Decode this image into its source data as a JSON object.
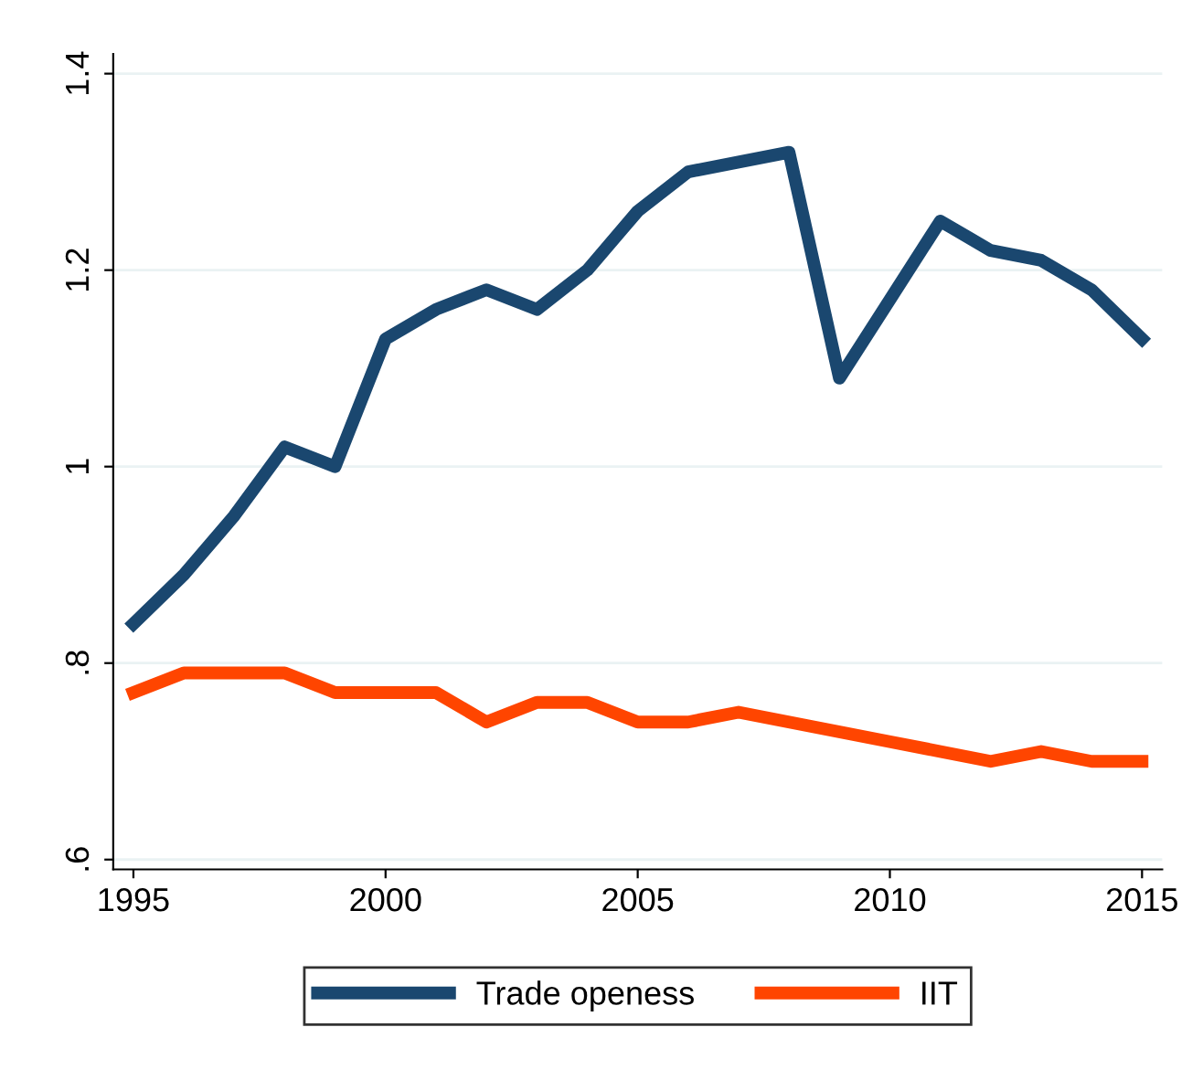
{
  "chart_data": {
    "type": "line",
    "x": [
      1995,
      1996,
      1997,
      1998,
      1999,
      2000,
      2001,
      2002,
      2003,
      2004,
      2005,
      2006,
      2007,
      2008,
      2009,
      2010,
      2011,
      2012,
      2013,
      2014,
      2015
    ],
    "series": [
      {
        "name": "Trade openess",
        "color": "#1a476f",
        "values": [
          0.84,
          0.89,
          0.95,
          1.02,
          1.0,
          1.13,
          1.16,
          1.18,
          1.16,
          1.2,
          1.26,
          1.3,
          1.31,
          1.32,
          1.09,
          1.17,
          1.25,
          1.22,
          1.21,
          1.18,
          1.13
        ]
      },
      {
        "name": "IIT",
        "color": "#ff4500",
        "values": [
          0.77,
          0.79,
          0.79,
          0.79,
          0.77,
          0.77,
          0.77,
          0.74,
          0.76,
          0.76,
          0.74,
          0.74,
          0.75,
          0.74,
          0.73,
          0.72,
          0.71,
          0.7,
          0.71,
          0.7,
          0.7
        ]
      }
    ],
    "xlim": [
      1994.6,
      2015.4
    ],
    "xticks": [
      1995,
      2000,
      2005,
      2010,
      2015
    ],
    "ylim": [
      0.59,
      1.42
    ],
    "yticks": [
      {
        "value": 0.6,
        "label": ".6"
      },
      {
        "value": 0.8,
        "label": ".8"
      },
      1,
      1.2,
      1.4
    ],
    "grid": "y",
    "legend": "bottom",
    "marker": "none",
    "line_style": "solid"
  }
}
